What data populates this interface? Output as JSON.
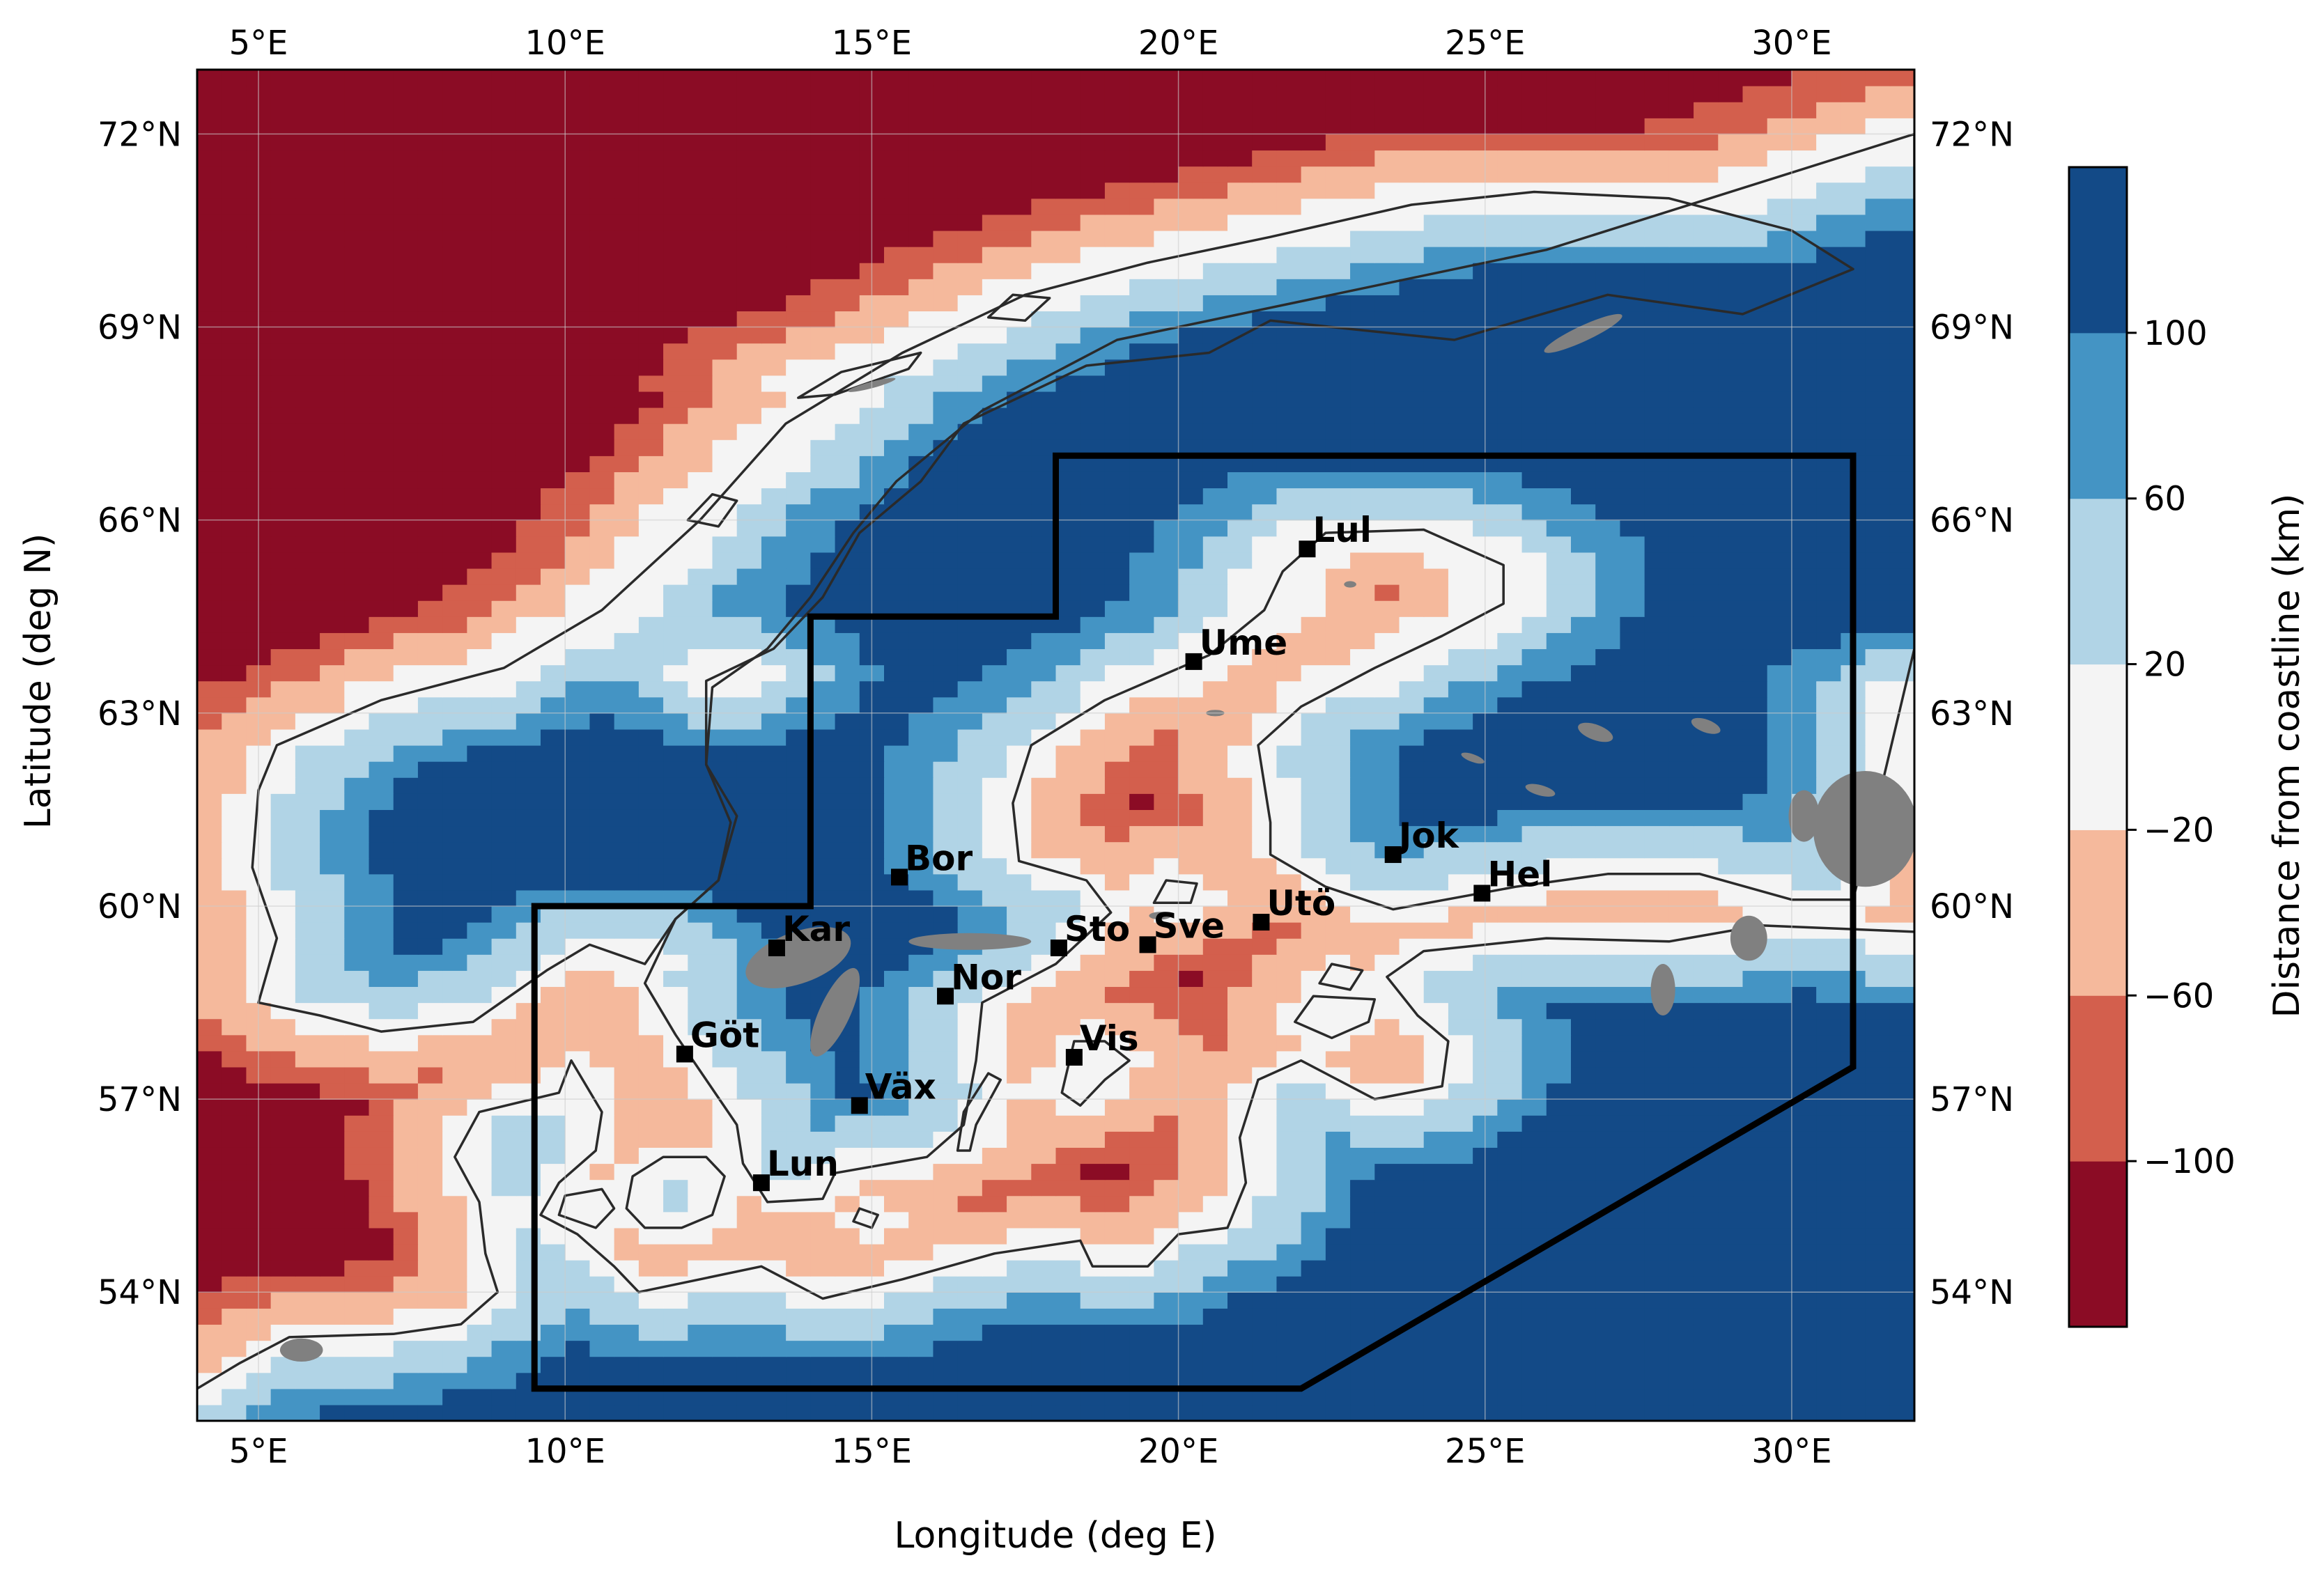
{
  "colors": {
    "scale": [
      "#8b0c25",
      "#d35f4d",
      "#f5b99c",
      "#f4f4f4",
      "#b1d4e6",
      "#4494c4",
      "#134a87"
    ],
    "lake": "#808080",
    "coast": "#2a2a2a",
    "region": "#000000",
    "grid": "#cccccc"
  },
  "axes": {
    "xlabel": "Longitude (deg E)",
    "ylabel": "Latitude (deg N)",
    "xlim": [
      4,
      32
    ],
    "ylim": [
      52.0,
      73
    ],
    "xticks": [
      {
        "v": 5,
        "label": "5°E"
      },
      {
        "v": 10,
        "label": "10°E"
      },
      {
        "v": 15,
        "label": "15°E"
      },
      {
        "v": 20,
        "label": "20°E"
      },
      {
        "v": 25,
        "label": "25°E"
      },
      {
        "v": 30,
        "label": "30°E"
      }
    ],
    "yticks": [
      {
        "v": 54,
        "label": "54°N"
      },
      {
        "v": 57,
        "label": "57°N"
      },
      {
        "v": 60,
        "label": "60°N"
      },
      {
        "v": 63,
        "label": "63°N"
      },
      {
        "v": 66,
        "label": "66°N"
      },
      {
        "v": 69,
        "label": "69°N"
      },
      {
        "v": 72,
        "label": "72°N"
      }
    ]
  },
  "colorbar": {
    "label": "Distance from coastline (km)",
    "range": [
      -140,
      140
    ],
    "ticks": [
      {
        "v": -100,
        "label": "−100"
      },
      {
        "v": -60,
        "label": "−60"
      },
      {
        "v": -20,
        "label": "−20"
      },
      {
        "v": 20,
        "label": "20"
      },
      {
        "v": 60,
        "label": "60"
      },
      {
        "v": 100,
        "label": "100"
      }
    ]
  },
  "region": [
    [
      9.5,
      52.5
    ],
    [
      9.5,
      60
    ],
    [
      14,
      60
    ],
    [
      14,
      64.5
    ],
    [
      18,
      64.5
    ],
    [
      18,
      67
    ],
    [
      31,
      67
    ],
    [
      31,
      57.5
    ],
    [
      22,
      52.5
    ]
  ],
  "stations": [
    {
      "name": "Lul",
      "lon": 22.1,
      "lat": 65.55
    },
    {
      "name": "Ume",
      "lon": 20.25,
      "lat": 63.8
    },
    {
      "name": "Bor",
      "lon": 15.45,
      "lat": 60.45
    },
    {
      "name": "Jok",
      "lon": 23.5,
      "lat": 60.8
    },
    {
      "name": "Hel",
      "lon": 24.95,
      "lat": 60.2
    },
    {
      "name": "Kar",
      "lon": 13.45,
      "lat": 59.35
    },
    {
      "name": "Sto",
      "lon": 18.05,
      "lat": 59.35
    },
    {
      "name": "Sve",
      "lon": 19.5,
      "lat": 59.4
    },
    {
      "name": "Utö",
      "lon": 21.35,
      "lat": 59.75
    },
    {
      "name": "Nor",
      "lon": 16.2,
      "lat": 58.6
    },
    {
      "name": "Göt",
      "lon": 11.95,
      "lat": 57.7
    },
    {
      "name": "Vis",
      "lon": 18.3,
      "lat": 57.65
    },
    {
      "name": "Väx",
      "lon": 14.8,
      "lat": 56.9
    },
    {
      "name": "Lun",
      "lon": 13.2,
      "lat": 55.7
    }
  ]
}
